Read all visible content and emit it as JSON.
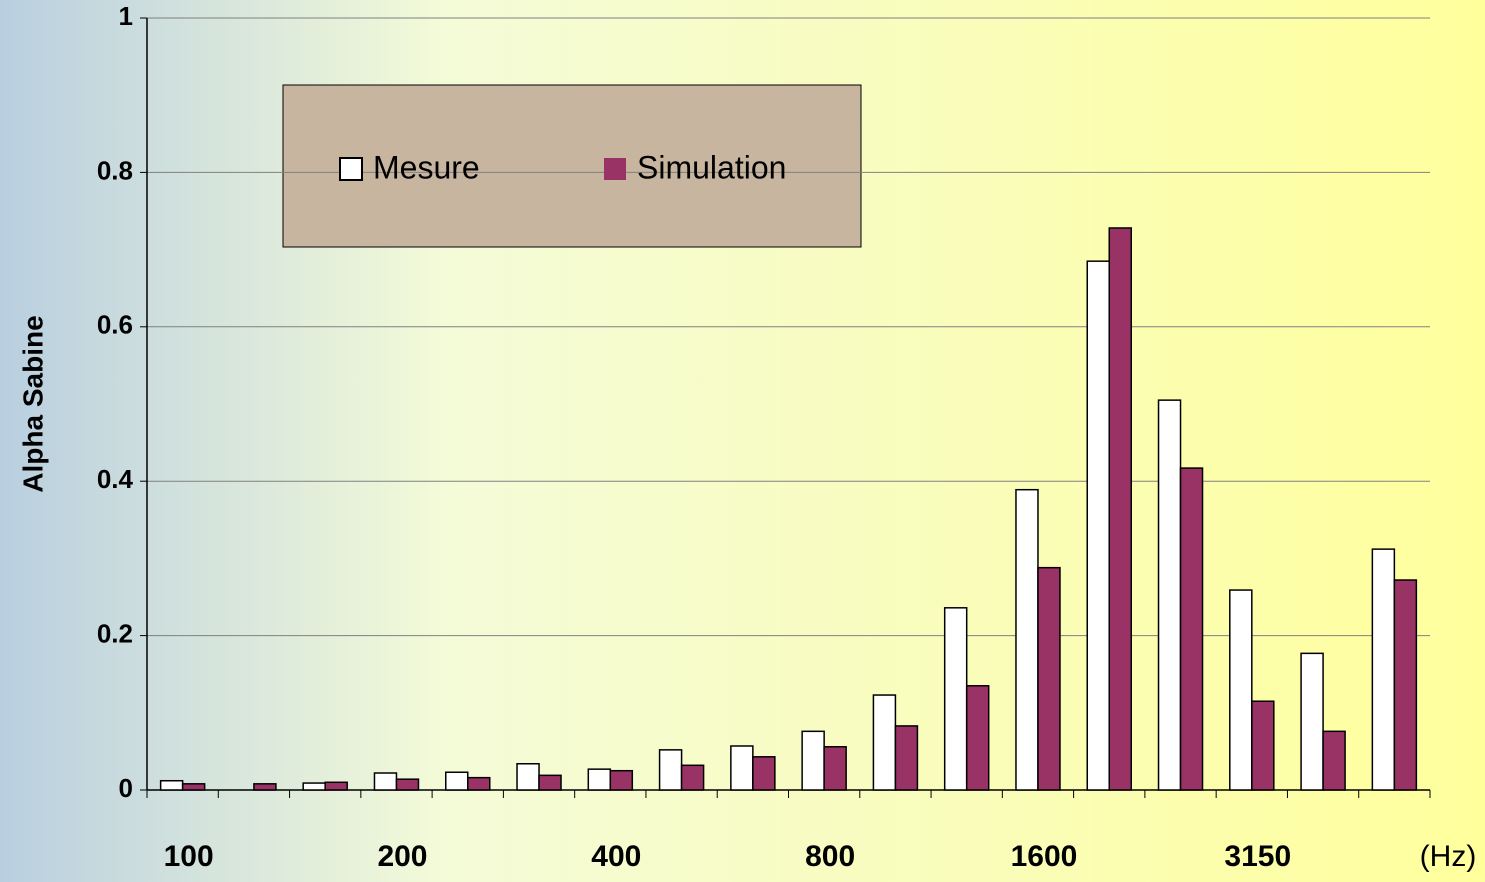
{
  "chart_data": {
    "type": "bar",
    "y_label": "Alpha Sabine",
    "x_unit": "(Hz)",
    "categories": [
      "100",
      null,
      null,
      "200",
      null,
      null,
      "400",
      null,
      null,
      "800",
      null,
      null,
      "1600",
      null,
      null,
      "3150",
      null,
      null
    ],
    "series": [
      {
        "name": "Mesure",
        "color": "#ffffff",
        "values": [
          0.012,
          0,
          0.009,
          0.022,
          0.023,
          0.034,
          0.027,
          0.052,
          0.057,
          0.076,
          0.123,
          0.236,
          0.389,
          0.685,
          0.505,
          0.259,
          0.177,
          0.312
        ]
      },
      {
        "name": "Simulation",
        "color": "#993366",
        "values": [
          0.008,
          0.008,
          0.01,
          0.014,
          0.016,
          0.019,
          0.025,
          0.032,
          0.043,
          0.056,
          0.083,
          0.135,
          0.288,
          0.728,
          0.417,
          0.115,
          0.076,
          0.272
        ]
      }
    ],
    "ylim": [
      0,
      1
    ],
    "yticks": [
      0,
      0.2,
      0.4,
      0.6,
      0.8,
      1
    ],
    "grid": true
  }
}
